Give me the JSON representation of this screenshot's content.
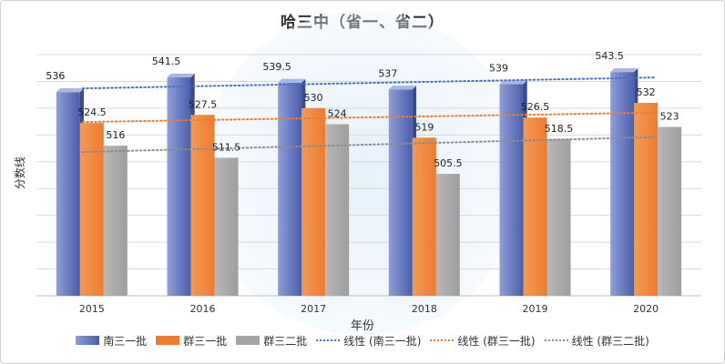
{
  "chart_data": {
    "type": "bar",
    "title": "哈三中（省一、省二）",
    "xlabel": "年份",
    "ylabel": "分数线",
    "categories": [
      "2015",
      "2016",
      "2017",
      "2018",
      "2019",
      "2020"
    ],
    "ylim": [
      460,
      550
    ],
    "grid": true,
    "series": [
      {
        "name": "南三一批",
        "values": [
          536,
          541.5,
          539.5,
          537,
          539,
          543.5
        ],
        "color": "#4a5ea8",
        "label_texts": [
          "536",
          "541.5",
          "539.5",
          "537",
          "539",
          "543.5"
        ]
      },
      {
        "name": "群三一批",
        "values": [
          524.5,
          527.5,
          530,
          519,
          526.5,
          532
        ],
        "color": "#ee7b30",
        "label_texts": [
          "524.5",
          "527.5",
          "530",
          "519",
          "526.5",
          "532"
        ]
      },
      {
        "name": "群三二批",
        "values": [
          516,
          511.5,
          524,
          505.5,
          518.5,
          523
        ],
        "color": "#a5a5a5",
        "label_texts": [
          "516",
          "511.5",
          "524",
          "505.5",
          "518.5",
          "523"
        ]
      }
    ],
    "trendlines": [
      {
        "name": "线性 (南三一批)",
        "series": 0,
        "color": "#4472c4"
      },
      {
        "name": "线性 (群三一批)",
        "series": 1,
        "color": "#ed7d31"
      },
      {
        "name": "线性 (群三二批)",
        "series": 2,
        "color": "#8c8c8c"
      }
    ],
    "legend": "bottom"
  }
}
